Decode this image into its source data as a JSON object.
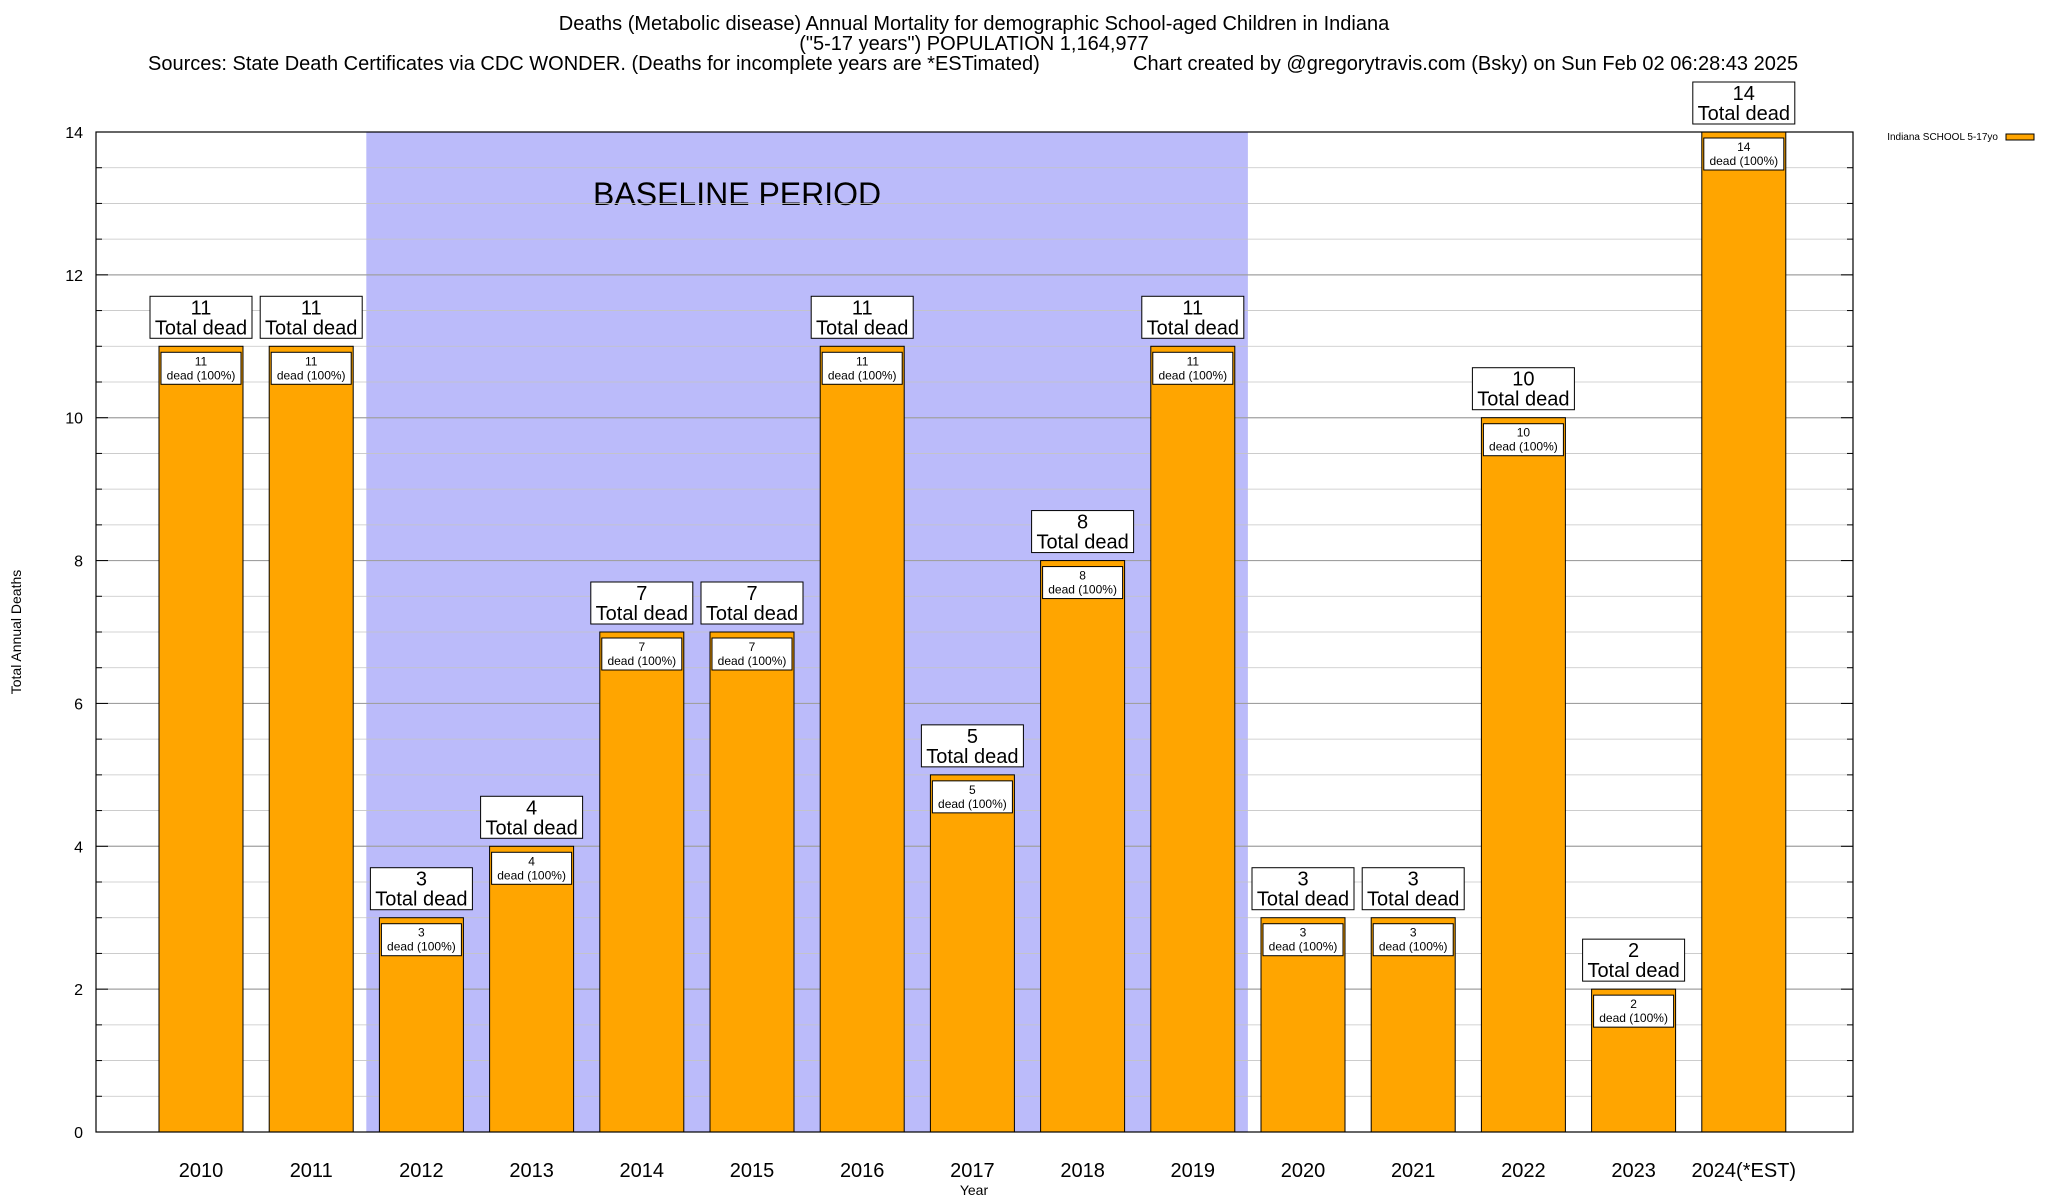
{
  "header": {
    "title": "Deaths (Metabolic disease) Annual Mortality for demographic School-aged Children in Indiana",
    "subtitle": "(\"5-17 years\") POPULATION 1,164,977",
    "sources": "Sources: State Death Certificates via CDC WONDER. (Deaths for incomplete years are *ESTimated)",
    "credit": "Chart created by @gregorytravis.com (Bsky) on Sun Feb 02 06:28:43 2025"
  },
  "chart_data": {
    "type": "bar",
    "categories": [
      "2010",
      "2011",
      "2012",
      "2013",
      "2014",
      "2015",
      "2016",
      "2017",
      "2018",
      "2019",
      "2020",
      "2021",
      "2022",
      "2023",
      "2024(*EST)"
    ],
    "series": [
      {
        "name": "Indiana SCHOOL 5-17yo",
        "values": [
          11,
          11,
          3,
          4,
          7,
          7,
          11,
          5,
          8,
          11,
          3,
          3,
          10,
          2,
          14
        ],
        "color": "#ffa500"
      }
    ],
    "total_label": "Total dead",
    "inner_label": "dead (100%)",
    "xlabel": "Year",
    "ylabel": "Total Annual Deaths",
    "ylim": [
      0,
      14
    ],
    "yticks": [
      0,
      2,
      4,
      6,
      8,
      10,
      12,
      14
    ],
    "grid": true,
    "legend_position": "top-right",
    "baseline": {
      "label": "BASELINE PERIOD",
      "start": "2012",
      "end": "2019",
      "color": "#bbbbfa"
    }
  }
}
